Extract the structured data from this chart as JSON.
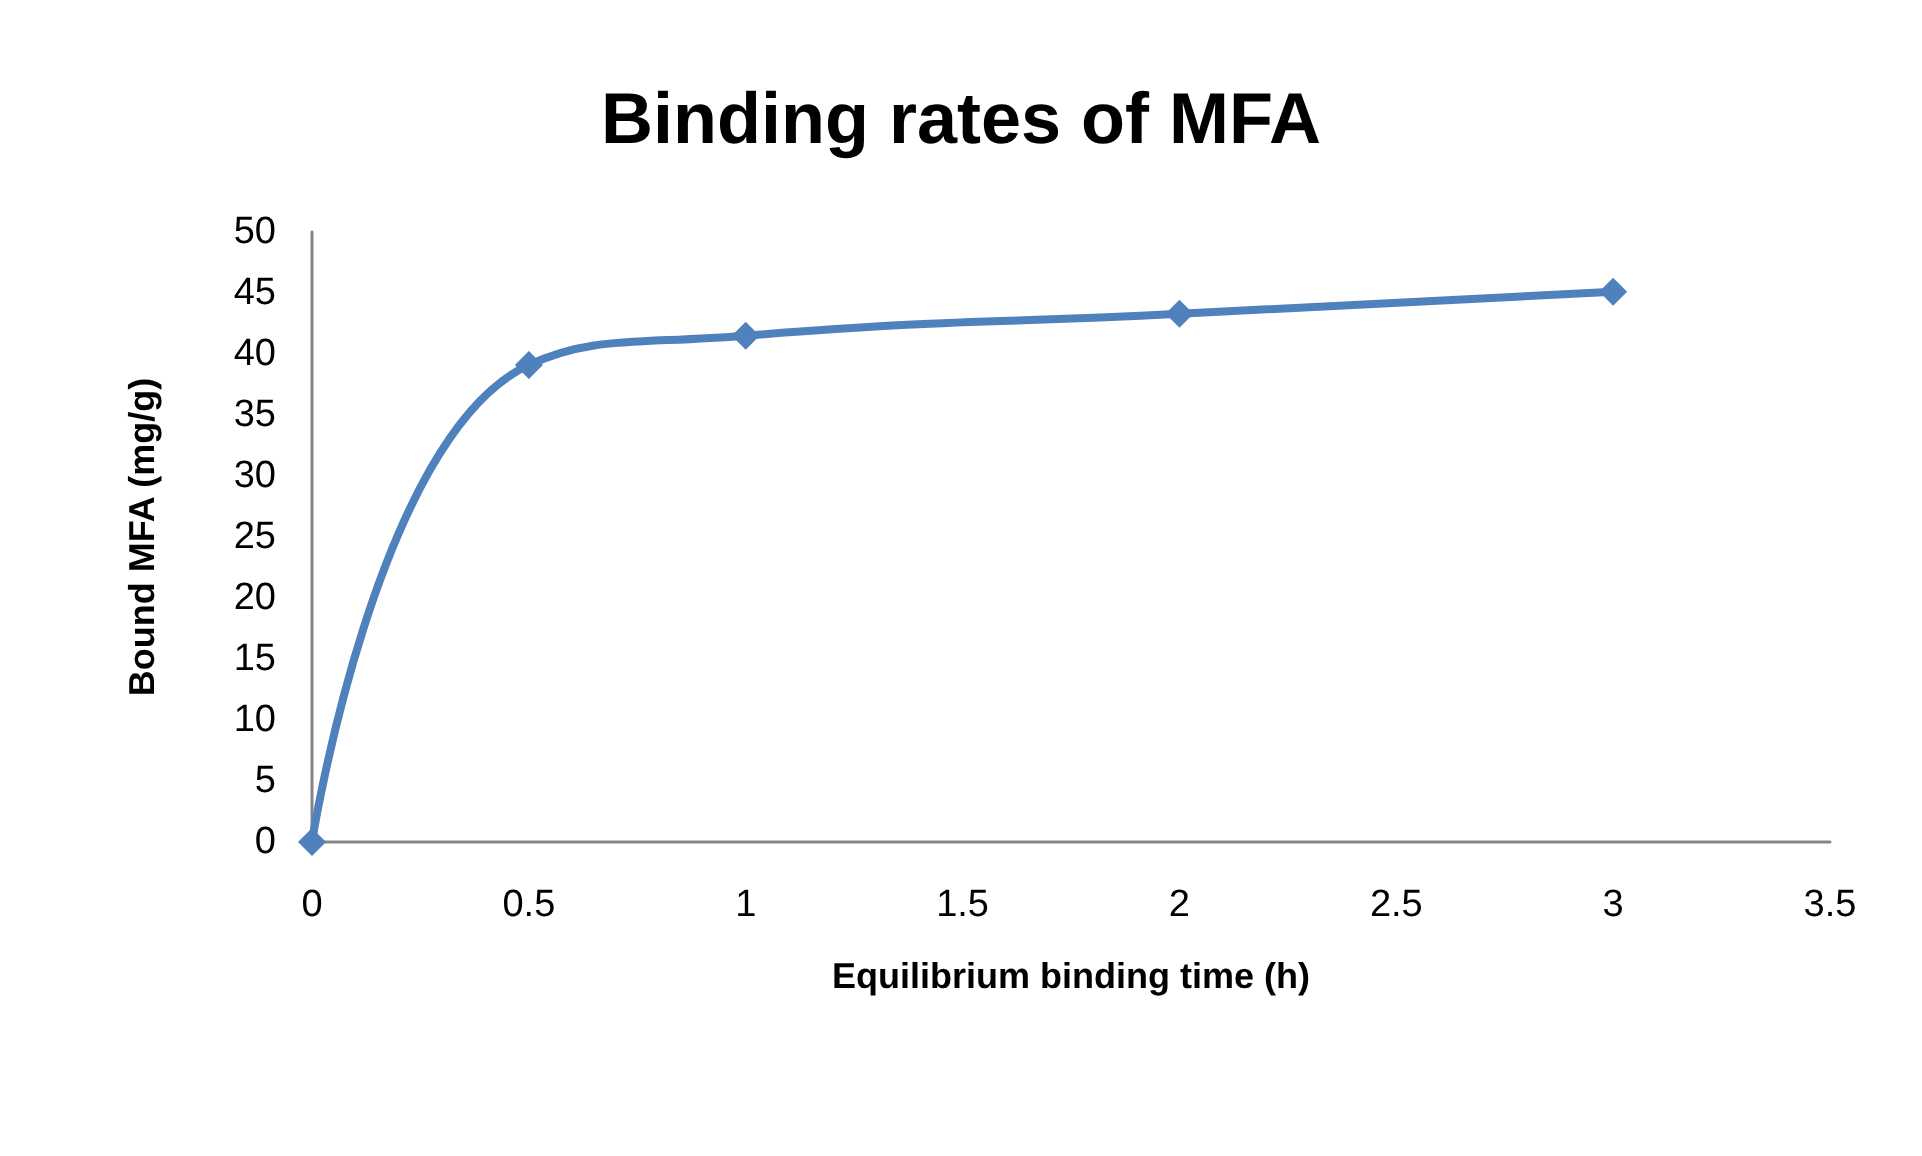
{
  "chart_data": {
    "type": "line",
    "title": "Binding rates of MFA",
    "xlabel": "Equilibrium binding time (h)",
    "ylabel": "Bound MFA (mg/g)",
    "x": [
      0,
      0.5,
      1,
      2,
      3
    ],
    "series": [
      {
        "color": "#4f81bd",
        "values": [
          0,
          39.1,
          41.5,
          43.3,
          45.1
        ]
      }
    ],
    "xlim": [
      0,
      3.5
    ],
    "xticks": [
      0,
      0.5,
      1,
      1.5,
      2,
      2.5,
      3,
      3.5
    ],
    "ylim": [
      0,
      50
    ],
    "yticks": [
      0,
      5,
      10,
      15,
      20,
      25,
      30,
      35,
      40,
      45,
      50
    ],
    "grid": false,
    "marker": "diamond",
    "line_style": "solid"
  }
}
